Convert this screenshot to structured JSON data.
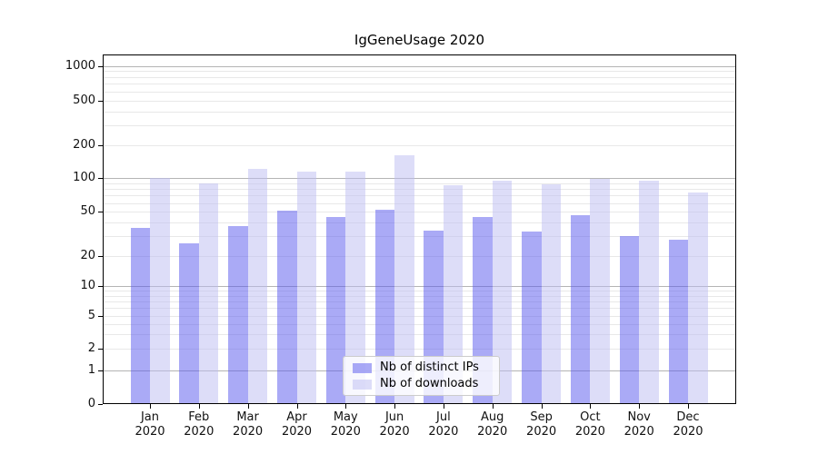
{
  "title": "IgGeneUsage 2020",
  "chart_data": {
    "type": "bar",
    "title": "IgGeneUsage 2020",
    "categories": [
      "Jan 2020",
      "Feb 2020",
      "Mar 2020",
      "Apr 2020",
      "May 2020",
      "Jun 2020",
      "Jul 2020",
      "Aug 2020",
      "Sep 2020",
      "Oct 2020",
      "Nov 2020",
      "Dec 2020"
    ],
    "months": [
      "Jan",
      "Feb",
      "Mar",
      "Apr",
      "May",
      "Jun",
      "Jul",
      "Aug",
      "Sep",
      "Oct",
      "Nov",
      "Dec"
    ],
    "year": "2020",
    "series": [
      {
        "name": "Nb of distinct IPs",
        "color": "#5555ee",
        "fill_alpha": 0.5,
        "values": [
          36,
          26,
          37,
          51,
          45,
          52,
          34,
          45,
          33,
          47,
          30,
          28
        ]
      },
      {
        "name": "Nb of downloads",
        "color": "#bbbbf2",
        "fill_alpha": 0.5,
        "values": [
          100,
          90,
          121,
          116,
          114,
          163,
          86,
          95,
          89,
          98,
          96,
          75
        ]
      }
    ],
    "y_ticks": [
      0,
      1,
      2,
      5,
      10,
      20,
      50,
      100,
      200,
      500,
      1000
    ],
    "yscale": "log-above-1-linear-below",
    "ylim": [
      0,
      1300
    ],
    "grid": "both",
    "legend_position": "lower center",
    "colors": {
      "major_grid": "#b4b4b4",
      "minor_grid": "#e8e8e8",
      "frame": "#000000",
      "background": "#ffffff"
    }
  }
}
